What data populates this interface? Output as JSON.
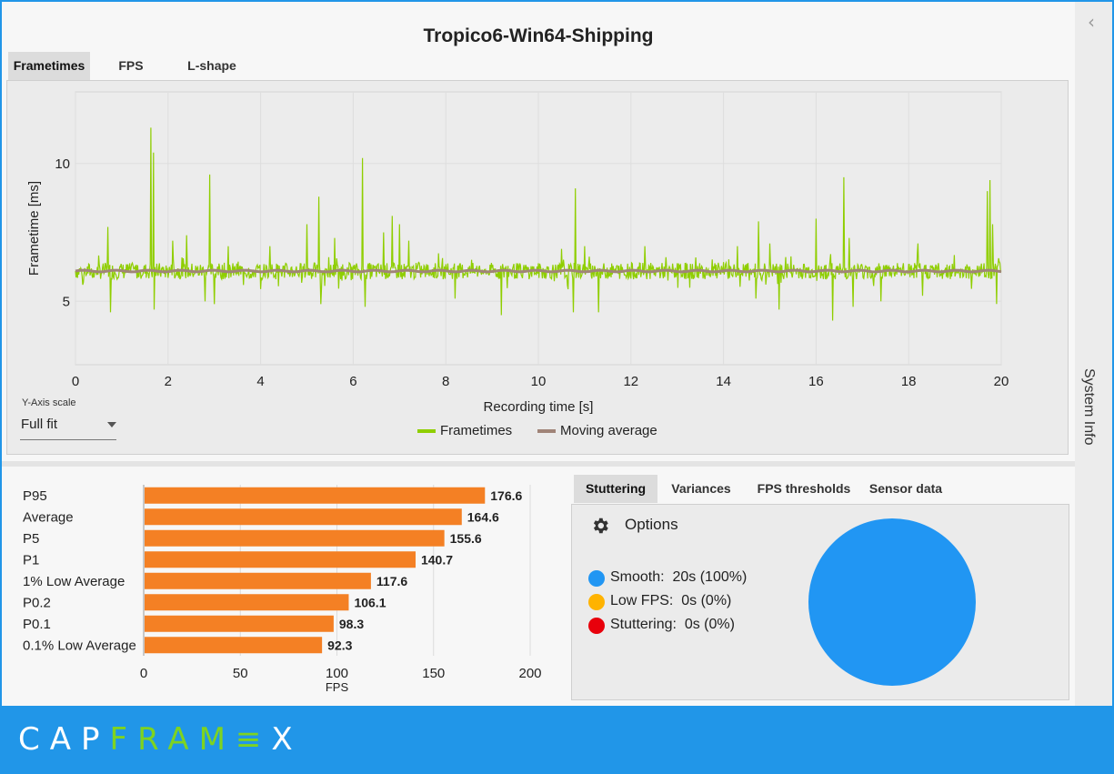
{
  "app": {
    "title": "Tropico6-Win64-Shipping",
    "logo_part1": "CAP",
    "logo_part2": "FRAM",
    "logo_part3": "≡",
    "logo_part4": "X",
    "accent_color": "#2196e8",
    "logo_green": "#7ed321"
  },
  "chart_tabs": [
    {
      "label": "Frametimes",
      "active": true
    },
    {
      "label": "FPS",
      "active": false
    },
    {
      "label": "L-shape",
      "active": false
    }
  ],
  "side_panel": {
    "label": "System Info",
    "icon": "chevron-left-icon"
  },
  "y_axis_scale": {
    "caption": "Y-Axis scale",
    "value": "Full fit"
  },
  "analysis_tabs": [
    {
      "label": "Stuttering",
      "active": true
    },
    {
      "label": "Variances",
      "active": false
    },
    {
      "label": "FPS thresholds",
      "active": false
    },
    {
      "label": "Sensor data",
      "active": false
    }
  ],
  "stuttering": {
    "options_label": "Options",
    "options_icon": "gear-icon",
    "legend": [
      {
        "label": "Smooth:",
        "value": "20s (100%)",
        "color": "#2196f3"
      },
      {
        "label": "Low FPS:",
        "value": "0s (0%)",
        "color": "#ffb300"
      },
      {
        "label": "Stuttering:",
        "value": "0s (0%)",
        "color": "#e8000b"
      }
    ]
  },
  "chart_data": [
    {
      "type": "line",
      "title": "",
      "xlabel": "Recording time [s]",
      "ylabel": "Frametime [ms]",
      "xlim": [
        0,
        20
      ],
      "ylim": [
        2.7,
        12.6
      ],
      "x_ticks": [
        0,
        2,
        4,
        6,
        8,
        10,
        12,
        14,
        16,
        18,
        20
      ],
      "y_ticks": [
        5,
        10
      ],
      "grid": true,
      "legend_placement": "bottom-center",
      "series": [
        {
          "name": "Frametimes",
          "color": "#8fce00",
          "baseline": 6.1,
          "noise": 0.3
        },
        {
          "name": "Moving average",
          "color": "#a08478",
          "values_constant": 6.1
        }
      ],
      "spikes": [
        {
          "x": 0.7,
          "y": 7.7
        },
        {
          "x": 1.63,
          "y": 11.3
        },
        {
          "x": 1.68,
          "y": 10.4
        },
        {
          "x": 2.1,
          "y": 7.2
        },
        {
          "x": 2.4,
          "y": 7.4
        },
        {
          "x": 2.9,
          "y": 9.6
        },
        {
          "x": 3.3,
          "y": 7.0
        },
        {
          "x": 4.2,
          "y": 7.0
        },
        {
          "x": 5.0,
          "y": 7.8
        },
        {
          "x": 5.25,
          "y": 8.8
        },
        {
          "x": 5.3,
          "y": 9.0
        },
        {
          "x": 5.6,
          "y": 7.3
        },
        {
          "x": 6.2,
          "y": 10.2
        },
        {
          "x": 6.65,
          "y": 7.5
        },
        {
          "x": 6.85,
          "y": 8.1
        },
        {
          "x": 7.0,
          "y": 7.8
        },
        {
          "x": 7.2,
          "y": 7.2
        },
        {
          "x": 8.2,
          "y": 7.0
        },
        {
          "x": 9.2,
          "y": 9.4
        },
        {
          "x": 10.5,
          "y": 6.9
        },
        {
          "x": 10.75,
          "y": 9.4
        },
        {
          "x": 10.8,
          "y": 9.1
        },
        {
          "x": 11.0,
          "y": 7.0
        },
        {
          "x": 12.3,
          "y": 7.0
        },
        {
          "x": 14.3,
          "y": 7.0
        },
        {
          "x": 14.7,
          "y": 10.3
        },
        {
          "x": 14.75,
          "y": 7.9
        },
        {
          "x": 15.2,
          "y": 11.0
        },
        {
          "x": 15.0,
          "y": 7.1
        },
        {
          "x": 16.0,
          "y": 8.0
        },
        {
          "x": 16.6,
          "y": 9.5
        },
        {
          "x": 16.72,
          "y": 7.3
        },
        {
          "x": 17.4,
          "y": 9.0
        },
        {
          "x": 18.2,
          "y": 7.1
        },
        {
          "x": 19.7,
          "y": 9.0
        },
        {
          "x": 19.75,
          "y": 9.4
        },
        {
          "x": 19.9,
          "y": 8.6
        },
        {
          "x": 19.82,
          "y": 7.8
        }
      ],
      "dips": [
        {
          "x": 0.75,
          "y": 4.6
        },
        {
          "x": 1.7,
          "y": 4.7
        },
        {
          "x": 2.8,
          "y": 5.0
        },
        {
          "x": 3.0,
          "y": 4.9
        },
        {
          "x": 5.3,
          "y": 4.9
        },
        {
          "x": 6.25,
          "y": 4.8
        },
        {
          "x": 8.2,
          "y": 5.1
        },
        {
          "x": 9.2,
          "y": 4.5
        },
        {
          "x": 10.75,
          "y": 4.6
        },
        {
          "x": 11.3,
          "y": 4.6
        },
        {
          "x": 14.7,
          "y": 5.1
        },
        {
          "x": 15.2,
          "y": 4.7
        },
        {
          "x": 16.35,
          "y": 4.3
        },
        {
          "x": 16.8,
          "y": 4.8
        },
        {
          "x": 17.4,
          "y": 5.0
        },
        {
          "x": 18.3,
          "y": 5.2
        },
        {
          "x": 19.9,
          "y": 4.9
        }
      ]
    },
    {
      "type": "bar",
      "orientation": "horizontal",
      "title": "",
      "xlabel": "FPS",
      "ylabel": "",
      "xlim": [
        0,
        200
      ],
      "x_ticks": [
        0,
        50,
        100,
        150,
        200
      ],
      "grid": true,
      "color": "#f48024",
      "categories": [
        "P95",
        "Average",
        "P5",
        "P1",
        "1% Low Average",
        "P0.2",
        "P0.1",
        "0.1% Low Average"
      ],
      "values": [
        176.6,
        164.6,
        155.6,
        140.7,
        117.6,
        106.1,
        98.3,
        92.3
      ],
      "value_labels": [
        "176.6",
        "164.6",
        "155.6",
        "140.7",
        "117.6",
        "106.1",
        "98.3",
        "92.3"
      ]
    }
  ]
}
